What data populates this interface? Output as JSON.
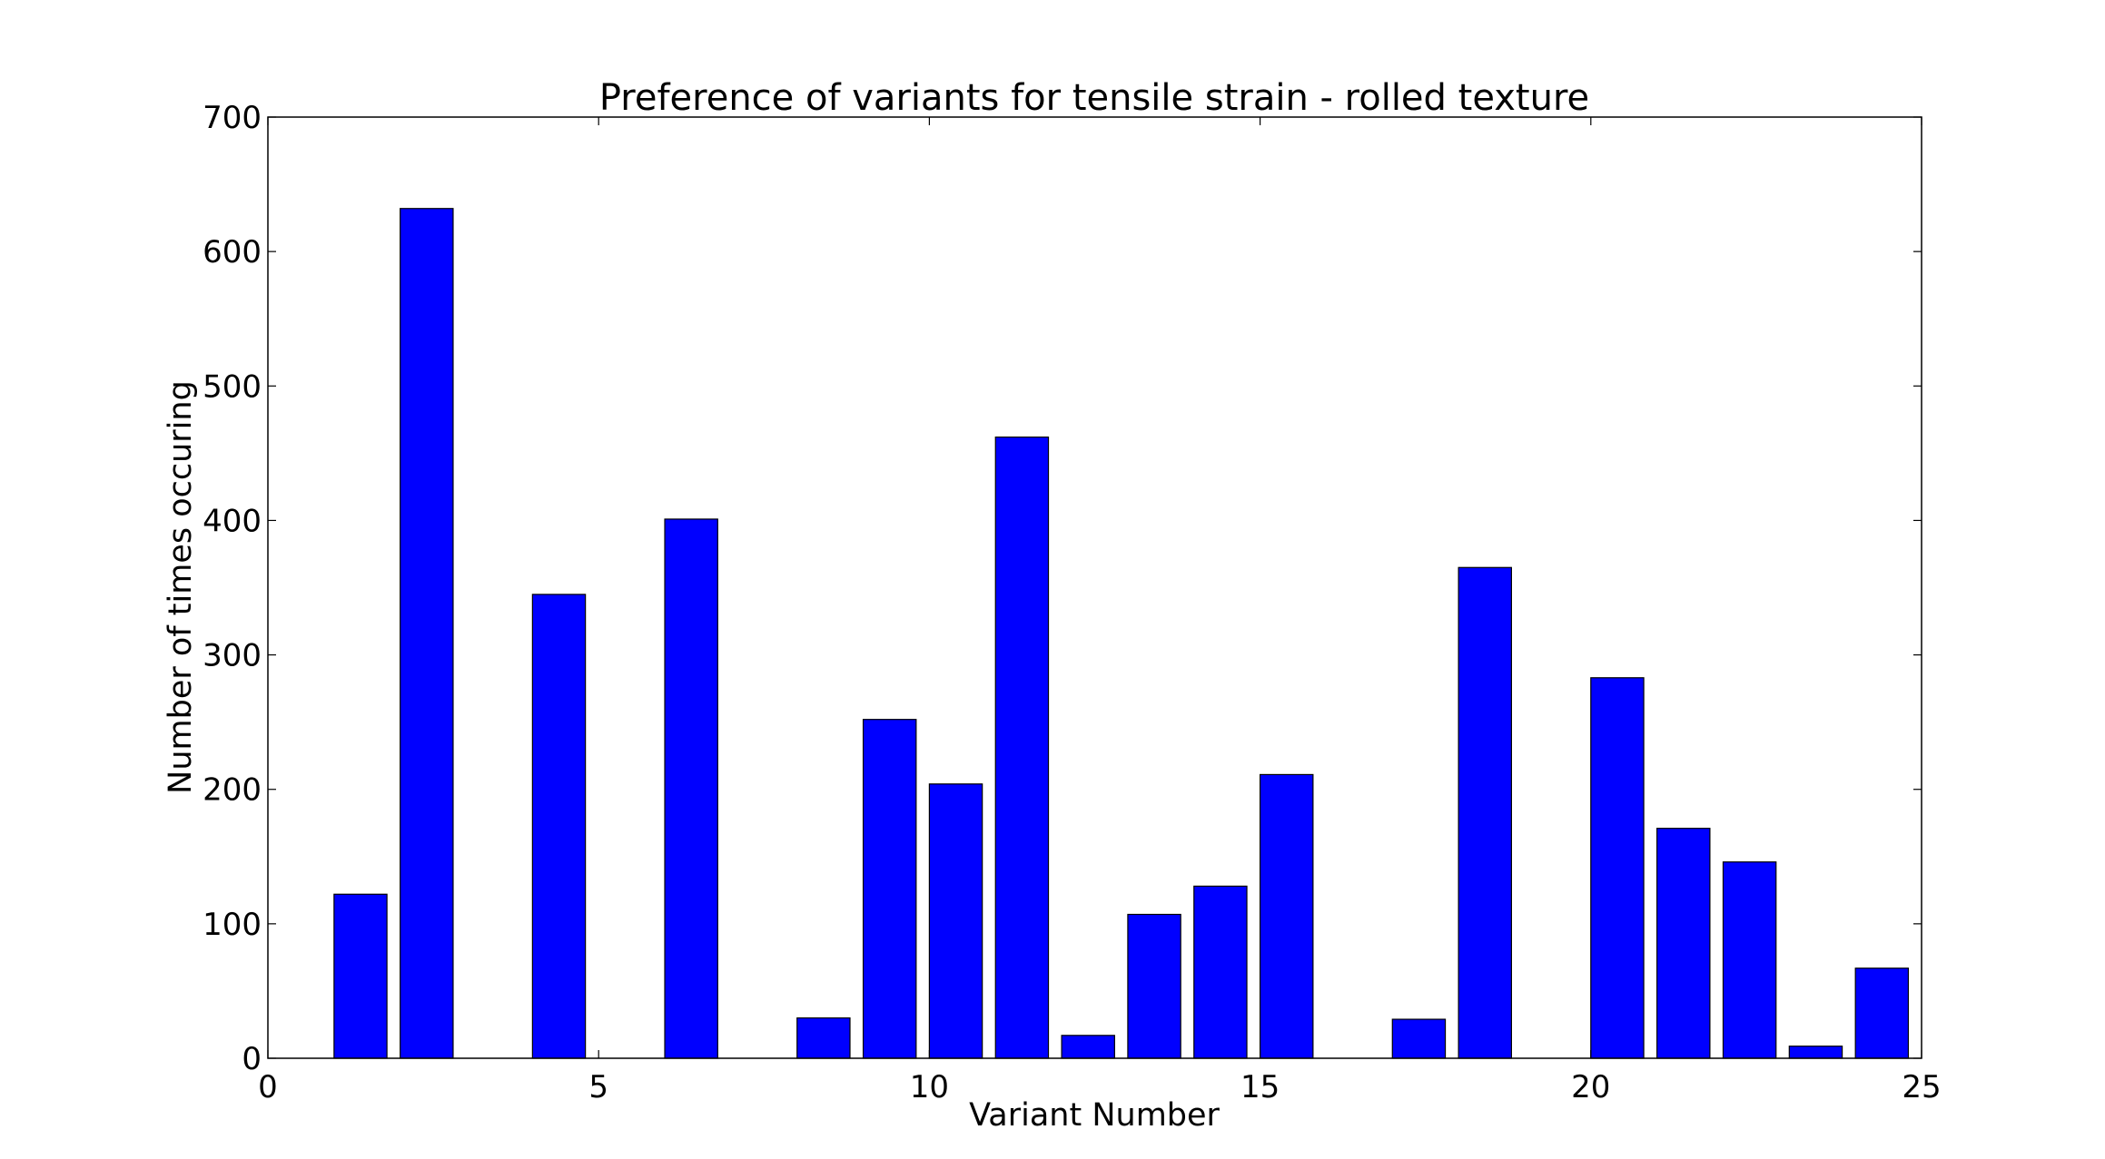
{
  "chart_data": {
    "type": "bar",
    "title": "Preference of variants for tensile strain - rolled texture",
    "xlabel": "Variant Number",
    "ylabel": "Number of times occuring",
    "xlim": [
      0,
      25
    ],
    "ylim": [
      0,
      700
    ],
    "xticks": [
      "0",
      "5",
      "10",
      "15",
      "20",
      "25"
    ],
    "yticks": [
      "0",
      "100",
      "200",
      "300",
      "400",
      "500",
      "600",
      "700"
    ],
    "bar_width": 0.8,
    "bar_color": "#0000ff",
    "edge_color": "#000000",
    "grid": false,
    "legend": false,
    "x": [
      1,
      2,
      3,
      4,
      5,
      6,
      7,
      8,
      9,
      10,
      11,
      12,
      13,
      14,
      15,
      16,
      17,
      18,
      19,
      20,
      21,
      22,
      23,
      24
    ],
    "values": [
      122,
      632,
      0,
      345,
      0,
      401,
      0,
      30,
      252,
      204,
      462,
      17,
      107,
      128,
      211,
      0,
      29,
      365,
      0,
      283,
      171,
      146,
      9,
      67
    ]
  }
}
